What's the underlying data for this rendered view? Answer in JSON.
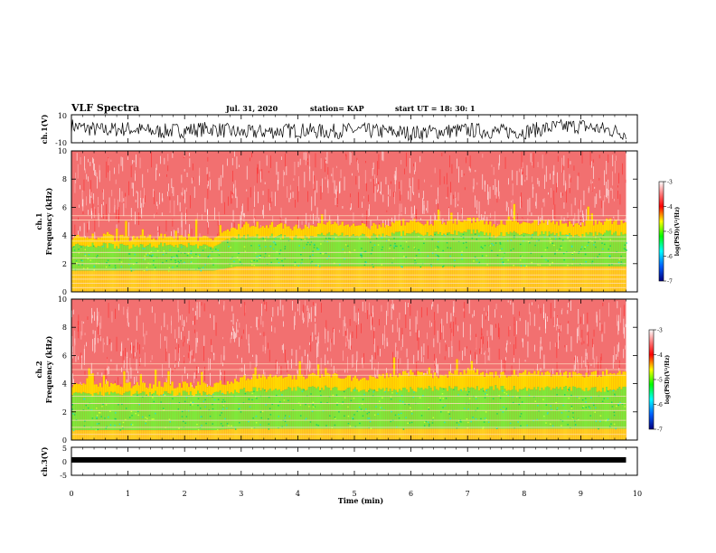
{
  "header": {
    "title": "VLF Spectra",
    "date": "Jul. 31, 2020",
    "station": "station= KAP",
    "start": "start  UT  =   18: 30: 1"
  },
  "chart_data": [
    {
      "type": "line",
      "panel": "ch1-waveform",
      "ylabel": "ch.1(V)",
      "ylim": [
        -10,
        10
      ],
      "yticks": [
        "10",
        "-10"
      ],
      "xlim": [
        0,
        10
      ],
      "series": [
        {
          "x": [
            0,
            0.5,
            1,
            1.5,
            2,
            2.5,
            3,
            3.5,
            4,
            4.5,
            5,
            5.5,
            6,
            6.5,
            7,
            7.5,
            8,
            8.5,
            9,
            9.5,
            9.8
          ],
          "values": [
            2,
            -1,
            0,
            -2,
            -1,
            0,
            -3,
            -2,
            -1,
            -2,
            -1,
            -2,
            -3,
            -2,
            -1,
            -2,
            -2,
            1,
            2,
            -1,
            -3
          ]
        }
      ]
    },
    {
      "type": "heatmap",
      "panel": "ch1-spectrogram",
      "ylabel_top": "ch.1",
      "ylabel": "Frequency (kHz)",
      "ylim": [
        0,
        10
      ],
      "yticks": [
        "0",
        "2",
        "4",
        "6",
        "8",
        "10"
      ],
      "xlim": [
        0,
        9.8
      ],
      "colorbar": {
        "label": "log(PSD)(V²/Hz)",
        "ticks": [
          "-3",
          "-4",
          "-5",
          "-6",
          "-7"
        ],
        "range": [
          -7,
          -3
        ]
      },
      "x": [
        0,
        0.5,
        1,
        1.5,
        2,
        2.5,
        2.9,
        3.5,
        4,
        4.5,
        5,
        5.5,
        6,
        6.5,
        7,
        7.5,
        8,
        8.5,
        9,
        9.5,
        9.8
      ],
      "green_upper_kHz": [
        3.3,
        3.3,
        3.2,
        3.3,
        3.3,
        3.2,
        3.9,
        4.0,
        3.8,
        4.1,
        3.9,
        4.0,
        4.2,
        4.1,
        4.3,
        4.0,
        4.2,
        4.1,
        4.0,
        4.2,
        4.0
      ],
      "yellow_upper_kHz": [
        3.9,
        3.9,
        3.8,
        3.9,
        3.9,
        3.8,
        4.6,
        4.8,
        4.5,
        4.9,
        4.6,
        4.7,
        5.0,
        4.9,
        5.1,
        4.8,
        5.0,
        4.9,
        4.8,
        5.0,
        4.8
      ],
      "green_lower_kHz": [
        1.5,
        1.5,
        1.5,
        1.5,
        1.5,
        1.5,
        1.8,
        1.8,
        1.8,
        1.8,
        1.8,
        1.8,
        1.8,
        1.8,
        1.8,
        1.8,
        1.8,
        1.8,
        1.8,
        1.8,
        1.8
      ],
      "line_freqs_kHz": [
        0.3,
        0.6,
        0.9,
        1.2,
        1.6,
        2.0,
        2.4,
        2.8,
        3.6,
        3.9,
        5.1,
        5.4
      ]
    },
    {
      "type": "heatmap",
      "panel": "ch2-spectrogram",
      "ylabel_top": "ch.2",
      "ylabel": "Frequency (kHz)",
      "ylim": [
        0,
        10
      ],
      "yticks": [
        "0",
        "2",
        "4",
        "6",
        "8",
        "10"
      ],
      "xlim": [
        0,
        9.8
      ],
      "colorbar": {
        "label": "log(PSD)(V²/Hz)",
        "ticks": [
          "-3",
          "-4",
          "-5",
          "-6",
          "-7"
        ],
        "range": [
          -7,
          -3
        ]
      },
      "x": [
        0,
        0.5,
        1,
        1.5,
        2,
        2.5,
        2.9,
        3.5,
        4,
        4.5,
        5,
        5.5,
        6,
        6.5,
        7,
        7.5,
        8,
        8.5,
        9,
        9.5,
        9.8
      ],
      "green_upper_kHz": [
        3.3,
        3.3,
        3.3,
        3.3,
        3.3,
        3.3,
        3.5,
        3.6,
        3.6,
        3.7,
        3.6,
        3.6,
        3.6,
        3.7,
        3.6,
        3.7,
        3.6,
        3.7,
        3.6,
        3.6,
        3.6
      ],
      "yellow_upper_kHz": [
        3.9,
        3.9,
        3.9,
        3.9,
        3.9,
        3.9,
        4.3,
        4.6,
        4.4,
        4.7,
        4.4,
        4.6,
        4.8,
        4.6,
        4.9,
        4.6,
        4.8,
        4.7,
        4.6,
        4.8,
        4.6
      ],
      "green_lower_kHz": [
        0.7,
        0.7,
        0.7,
        0.7,
        0.7,
        0.7,
        0.8,
        0.8,
        0.8,
        0.8,
        0.8,
        0.8,
        0.8,
        0.8,
        0.8,
        0.8,
        0.8,
        0.8,
        0.8,
        0.8,
        0.8
      ],
      "line_freqs_kHz": [
        0.4,
        0.9,
        1.4,
        2.1,
        2.6,
        3.1,
        4.6,
        5.0,
        5.4
      ]
    },
    {
      "type": "line",
      "panel": "ch3-waveform",
      "ylabel": "ch.3(V)",
      "ylim": [
        -5,
        5
      ],
      "yticks": [
        "5",
        "0",
        "-5"
      ],
      "xlabel": "Time (min)",
      "xlim": [
        0,
        10
      ],
      "xticks": [
        "0",
        "1",
        "2",
        "3",
        "4",
        "5",
        "6",
        "7",
        "8",
        "9",
        "10"
      ],
      "series": [
        {
          "x": [
            0,
            9.8
          ],
          "values": [
            0.5,
            0.5
          ]
        }
      ]
    }
  ]
}
